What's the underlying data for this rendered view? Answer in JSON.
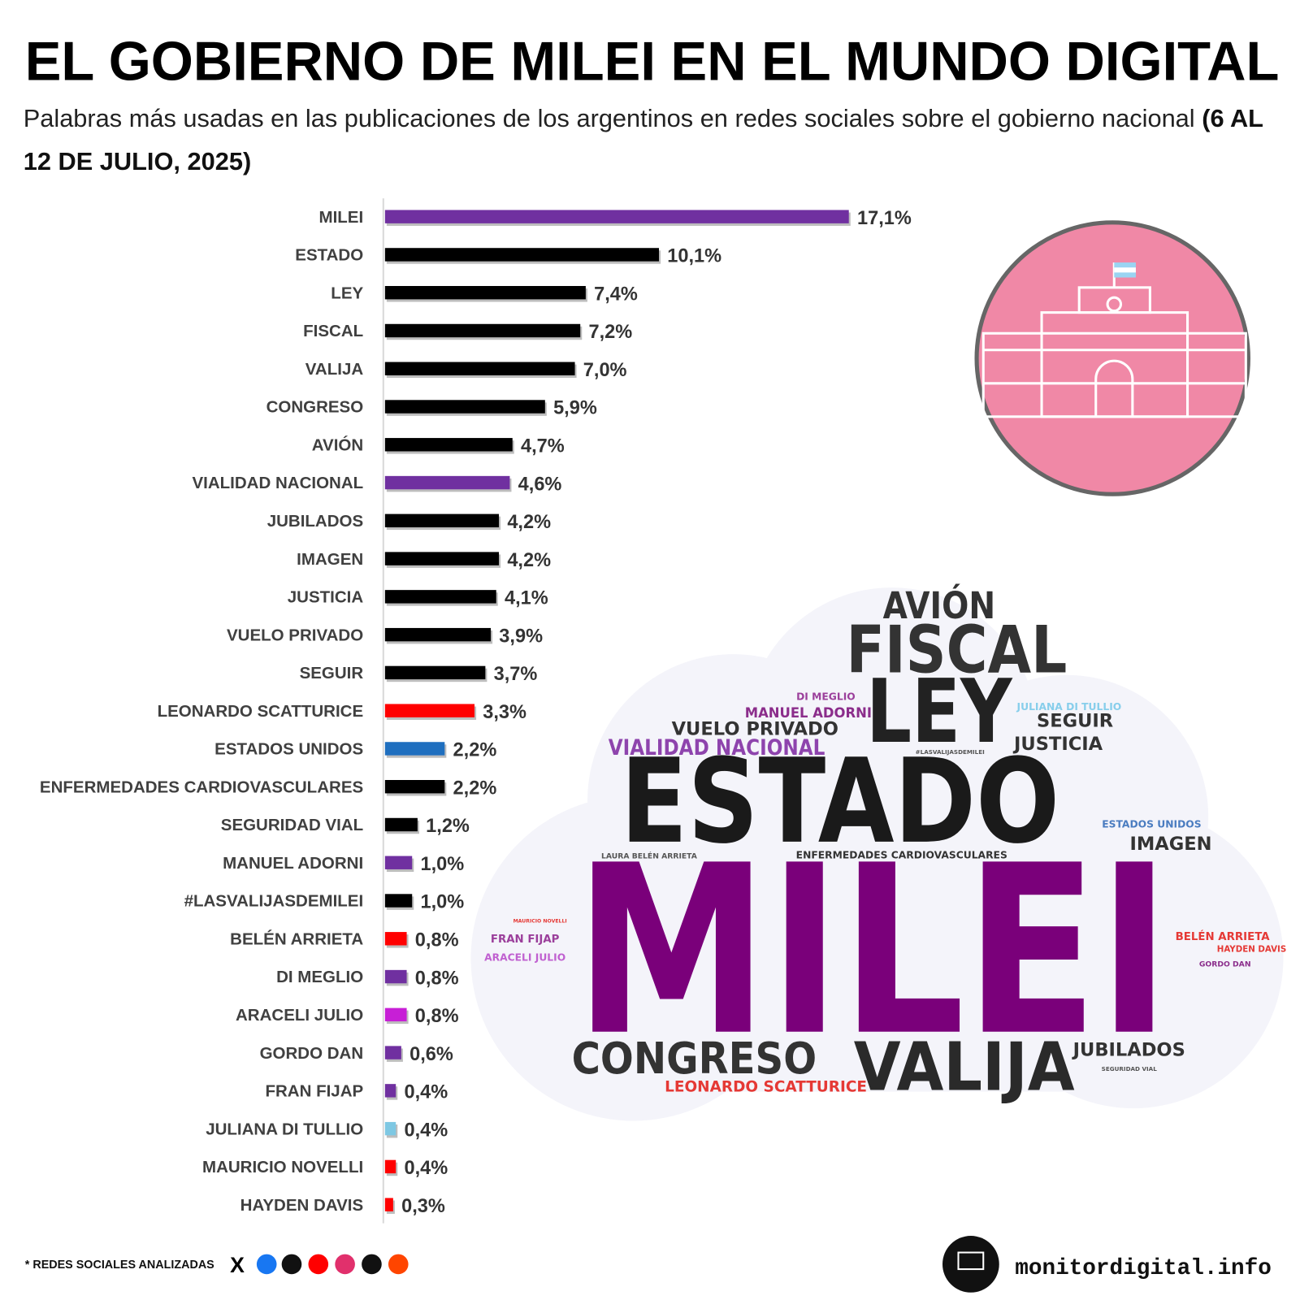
{
  "chart_data": {
    "type": "hbar",
    "title": "EL GOBIERNO DE MILEI EN EL MUNDO DIGITAL",
    "subtitle": "Palabras más usadas en las publicaciones de los argentinos en redes sociales sobre el gobierno nacional",
    "subtitle_date": "(6 AL 12 DE JULIO, 2025)",
    "categories": [
      "MILEI",
      "ESTADO",
      "LEY",
      "FISCAL",
      "VALIJA",
      "CONGRESO",
      "AVIÓN",
      "VIALIDAD NACIONAL",
      "JUBILADOS",
      "IMAGEN",
      "JUSTICIA",
      "VUELO PRIVADO",
      "SEGUIR",
      "LEONARDO SCATTURICE",
      "ESTADOS UNIDOS",
      "ENFERMEDADES CARDIOVASCULARES",
      "SEGURIDAD VIAL",
      "MANUEL ADORNI",
      "#LASVALIJASDEMILEI",
      "BELÉN ARRIETA",
      "DI MEGLIO",
      "ARACELI JULIO",
      "GORDO DAN",
      "FRAN FIJAP",
      "JULIANA DI TULLIO",
      "MAURICIO NOVELLI",
      "HAYDEN DAVIS"
    ],
    "values": [
      17.1,
      10.1,
      7.4,
      7.2,
      7.0,
      5.9,
      4.7,
      4.6,
      4.2,
      4.2,
      4.1,
      3.9,
      3.7,
      3.3,
      2.2,
      2.2,
      1.2,
      1.0,
      1.0,
      0.8,
      0.8,
      0.8,
      0.6,
      0.4,
      0.4,
      0.4,
      0.3
    ],
    "value_labels": [
      "17,1%",
      "10,1%",
      "7,4%",
      "7,2%",
      "7,0%",
      "5,9%",
      "4,7%",
      "4,6%",
      "4,2%",
      "4,2%",
      "4,1%",
      "3,9%",
      "3,7%",
      "3,3%",
      "2,2%",
      "2,2%",
      "1,2%",
      "1,0%",
      "1,0%",
      "0,8%",
      "0,8%",
      "0,8%",
      "0,6%",
      "0,4%",
      "0,4%",
      "0,4%",
      "0,3%"
    ],
    "colors": [
      "#7030a0",
      "#000000",
      "#000000",
      "#000000",
      "#000000",
      "#000000",
      "#000000",
      "#7030a0",
      "#000000",
      "#000000",
      "#000000",
      "#000000",
      "#000000",
      "#ff0000",
      "#1f6fbf",
      "#000000",
      "#000000",
      "#7030a0",
      "#000000",
      "#ff0000",
      "#7030a0",
      "#c71fd6",
      "#7030a0",
      "#7030a0",
      "#7ec8e3",
      "#ff0000",
      "#ff0000"
    ]
  },
  "word_cloud": [
    {
      "text": "AVIÓN",
      "color": "#333333"
    },
    {
      "text": "FISCAL",
      "color": "#333333"
    },
    {
      "text": "LEY",
      "color": "#222222"
    },
    {
      "text": "DI MEGLIO",
      "color": "#9b3f9b"
    },
    {
      "text": "MANUEL ADORNI",
      "color": "#8b2d8b"
    },
    {
      "text": "VUELO PRIVADO",
      "color": "#333333"
    },
    {
      "text": "VIALIDAD NACIONAL",
      "color": "#8e44ad"
    },
    {
      "text": "JULIANA DI TULLIO",
      "color": "#87ceeb"
    },
    {
      "text": "SEGUIR",
      "color": "#333333"
    },
    {
      "text": "JUSTICIA",
      "color": "#333333"
    },
    {
      "text": "#LASVALIJASDEMILEI",
      "color": "#555555"
    },
    {
      "text": "ESTADO",
      "color": "#1a1a1a"
    },
    {
      "text": "ESTADOS UNIDOS",
      "color": "#4a7cc0"
    },
    {
      "text": "IMAGEN",
      "color": "#333333"
    },
    {
      "text": "LAURA BELÉN ARRIETA",
      "color": "#555555"
    },
    {
      "text": "ENFERMEDADES CARDIOVASCULARES",
      "color": "#333333"
    },
    {
      "text": "MILEI",
      "color": "#7a007a"
    },
    {
      "text": "MAURICIO NOVELLI",
      "color": "#e53935"
    },
    {
      "text": "FRAN FIJAP",
      "color": "#9b3f9b"
    },
    {
      "text": "ARACELI JULIO",
      "color": "#c060d0"
    },
    {
      "text": "BELÉN ARRIETA",
      "color": "#e53935"
    },
    {
      "text": "HAYDEN DAVIS",
      "color": "#e53935"
    },
    {
      "text": "GORDO DAN",
      "color": "#8b2d8b"
    },
    {
      "text": "CONGRESO",
      "color": "#333333"
    },
    {
      "text": "VALIJA",
      "color": "#2a2a2a"
    },
    {
      "text": "JUBILADOS",
      "color": "#333333"
    },
    {
      "text": "SEGURIDAD VIAL",
      "color": "#555555"
    },
    {
      "text": "LEONARDO SCATTURICE",
      "color": "#e53935"
    }
  ],
  "footer": {
    "note": "* REDES SOCIALES ANALIZADAS",
    "site": "monitordigital.info"
  }
}
